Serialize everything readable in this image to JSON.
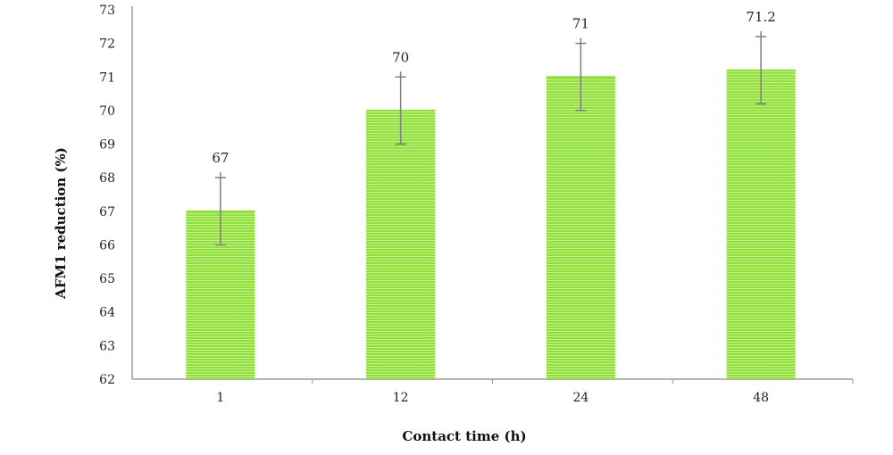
{
  "chart_data": {
    "type": "bar",
    "title": "",
    "xlabel": "Contact time (h)",
    "ylabel": "AFM1 reduction (%)",
    "categories": [
      "1",
      "12",
      "24",
      "48"
    ],
    "values": [
      67,
      70,
      71,
      71.2
    ],
    "value_labels": [
      "67",
      "70",
      "71",
      "71.2"
    ],
    "error_bars": [
      1,
      1,
      1,
      1
    ],
    "ylim": [
      62,
      73
    ],
    "yticks": [
      "62",
      "63",
      "64",
      "65",
      "66",
      "67",
      "68",
      "69",
      "70",
      "71",
      "72",
      "73"
    ],
    "grid": false,
    "legend": "none",
    "bar_color": "#8fe03a",
    "bar_stripe_color": "#c8f08e",
    "error_bar_color": "#7f7f7f",
    "axis_color": "#9a9a9a"
  }
}
